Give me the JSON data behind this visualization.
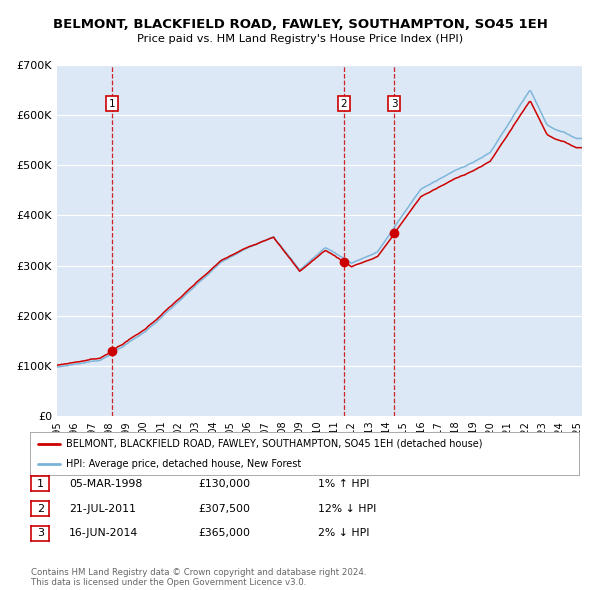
{
  "title": "BELMONT, BLACKFIELD ROAD, FAWLEY, SOUTHAMPTON, SO45 1EH",
  "subtitle": "Price paid vs. HM Land Registry's House Price Index (HPI)",
  "background_color": "#dce8f5",
  "grid_color": "#ffffff",
  "hpi_color": "#7ab3d9",
  "price_color": "#cc0000",
  "ylim": [
    0,
    700000
  ],
  "yticks": [
    0,
    100000,
    200000,
    300000,
    400000,
    500000,
    600000,
    700000
  ],
  "ytick_labels": [
    "£0",
    "£100K",
    "£200K",
    "£300K",
    "£400K",
    "£500K",
    "£600K",
    "£700K"
  ],
  "xlim_start": 1995.0,
  "xlim_end": 2025.3,
  "sale_dates": [
    1998.18,
    2011.55,
    2014.46
  ],
  "sale_prices": [
    130000,
    307500,
    365000
  ],
  "sale_labels": [
    "1",
    "2",
    "3"
  ],
  "legend_line1": "BELMONT, BLACKFIELD ROAD, FAWLEY, SOUTHAMPTON, SO45 1EH (detached house)",
  "legend_line2": "HPI: Average price, detached house, New Forest",
  "table_rows": [
    [
      "1",
      "05-MAR-1998",
      "£130,000",
      "1% ↑ HPI"
    ],
    [
      "2",
      "21-JUL-2011",
      "£307,500",
      "12% ↓ HPI"
    ],
    [
      "3",
      "16-JUN-2014",
      "£365,000",
      "2% ↓ HPI"
    ]
  ],
  "footer": "Contains HM Land Registry data © Crown copyright and database right 2024.\nThis data is licensed under the Open Government Licence v3.0."
}
